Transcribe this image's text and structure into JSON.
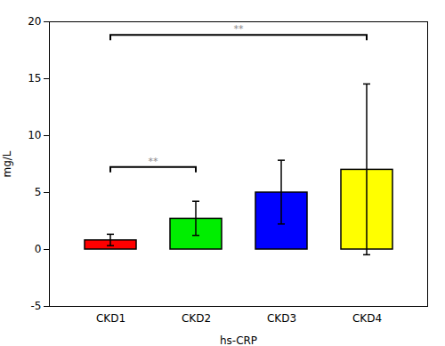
{
  "chart_data": {
    "type": "bar",
    "xlabel": "hs-CRP",
    "ylabel": "mg/L",
    "categories": [
      "CKD1",
      "CKD2",
      "CKD3",
      "CKD4"
    ],
    "values": [
      0.8,
      2.7,
      5.0,
      7.0
    ],
    "errors": [
      0.5,
      1.5,
      2.8,
      7.5
    ],
    "colors": [
      "#ff0000",
      "#00ee00",
      "#0000ff",
      "#ffff00"
    ],
    "ylim": [
      -5,
      20
    ],
    "yticks": [
      -5,
      0,
      5,
      10,
      15,
      20
    ],
    "grid": false,
    "annotations": [
      {
        "text": "**",
        "x1": "CKD1",
        "x2": "CKD2",
        "y": 7.2,
        "color": "#888888"
      },
      {
        "text": "**",
        "x1": "CKD1",
        "x2": "CKD4",
        "y": 18.8,
        "color": "#888888"
      }
    ]
  }
}
